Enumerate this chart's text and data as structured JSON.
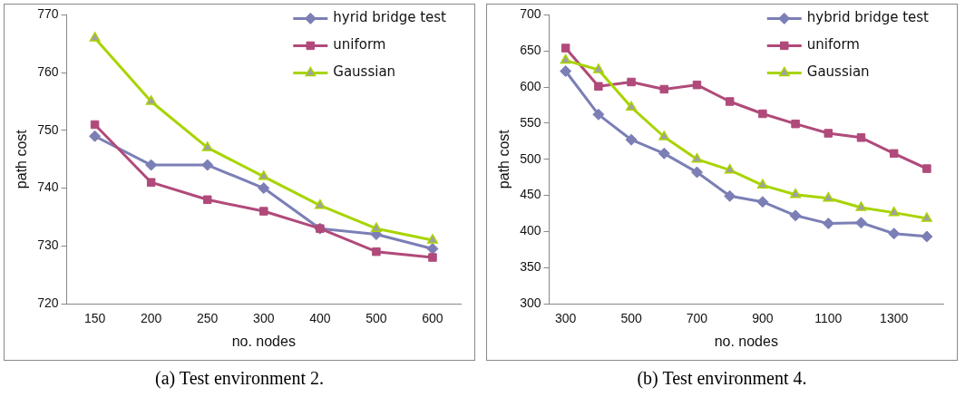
{
  "chart_data": [
    {
      "type": "line",
      "xlabel": "no. nodes",
      "ylabel": "path cost",
      "categories": [
        "150",
        "200",
        "250",
        "300",
        "400",
        "500",
        "600"
      ],
      "ylim": [
        720,
        770
      ],
      "yticks": [
        720,
        730,
        740,
        750,
        760,
        770
      ],
      "grid": false,
      "legend": "top right",
      "annotations": [
        "(a) Test environment 2."
      ],
      "series": [
        {
          "name": "hyrid bridge test",
          "color": "#7b7fb5",
          "marker": "diamond",
          "values": [
            749,
            744,
            744,
            740,
            733,
            732,
            729.5
          ]
        },
        {
          "name": "uniform",
          "color": "#b04a7a",
          "marker": "square",
          "values": [
            751,
            741,
            738,
            736,
            733,
            729,
            728
          ]
        },
        {
          "name": "Gaussian",
          "color": "#a8d400",
          "marker": "triangle",
          "values": [
            766,
            755,
            747,
            742,
            737,
            733,
            731
          ]
        }
      ]
    },
    {
      "type": "line",
      "xlabel": "no. nodes",
      "ylabel": "path cost",
      "categories": [
        "300",
        null,
        "500",
        null,
        "700",
        null,
        "900",
        null,
        "1100",
        null,
        "1300",
        null
      ],
      "ylim": [
        300,
        700
      ],
      "yticks": [
        300,
        350,
        400,
        450,
        500,
        550,
        600,
        650,
        700
      ],
      "grid": false,
      "legend": "top right",
      "annotations": [
        "(b) Test environment 4."
      ],
      "series": [
        {
          "name": "hybrid bridge test",
          "color": "#7b7fb5",
          "marker": "diamond",
          "values": [
            622,
            562,
            527,
            508,
            482,
            449,
            441,
            422,
            411,
            412,
            397,
            393
          ]
        },
        {
          "name": "uniform",
          "color": "#b04a7a",
          "marker": "square",
          "values": [
            654,
            601,
            607,
            597,
            603,
            580,
            563,
            549,
            536,
            530,
            508,
            487
          ]
        },
        {
          "name": "Gaussian",
          "color": "#a8d400",
          "marker": "triangle",
          "values": [
            637,
            624,
            572,
            531,
            500,
            485,
            464,
            451,
            446,
            433,
            426,
            418
          ]
        }
      ]
    }
  ]
}
